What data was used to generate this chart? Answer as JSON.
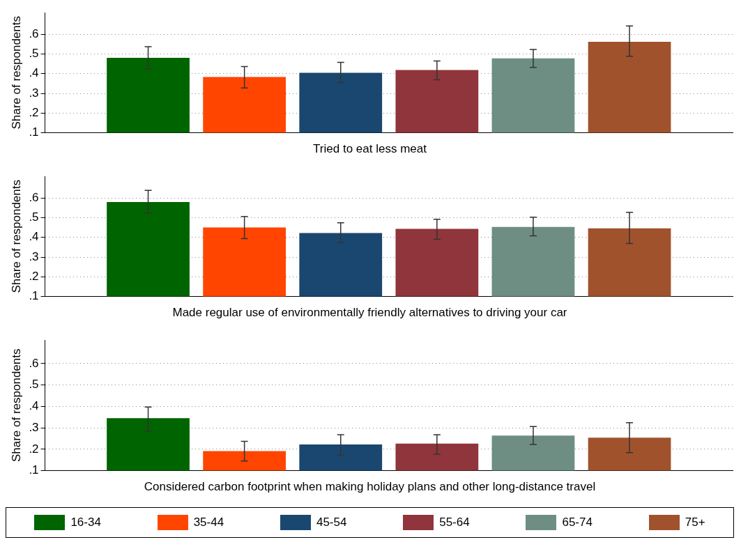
{
  "chart_data": [
    {
      "type": "bar",
      "title": "Tried to eat less meat",
      "ylabel": "Share of respondents",
      "categories": [
        null
      ],
      "ylim": [
        0.1,
        0.71
      ],
      "yticks": [
        {
          "value": 0.1,
          "label": ".1"
        },
        {
          "value": 0.2,
          "label": ".2"
        },
        {
          "value": 0.3,
          "label": ".3"
        },
        {
          "value": 0.4,
          "label": ".4"
        },
        {
          "value": 0.5,
          "label": ".5"
        },
        {
          "value": 0.6,
          "label": ".6"
        }
      ],
      "grid": "y",
      "legend": false,
      "series": [
        {
          "color": "#006400",
          "values": [
            0.48
          ],
          "errors": [
            [
              0.425,
              0.537
            ]
          ]
        },
        {
          "color": "#ff4500",
          "values": [
            0.383
          ],
          "errors": [
            [
              0.327,
              0.436
            ]
          ]
        },
        {
          "color": "#1a476f",
          "values": [
            0.404
          ],
          "errors": [
            [
              0.355,
              0.457
            ]
          ]
        },
        {
          "color": "#90353b",
          "values": [
            0.418
          ],
          "errors": [
            [
              0.369,
              0.464
            ]
          ]
        },
        {
          "color": "#6e8e84",
          "values": [
            0.478
          ],
          "errors": [
            [
              0.432,
              0.523
            ]
          ]
        },
        {
          "color": "#a0522d",
          "values": [
            0.562
          ],
          "errors": [
            [
              0.488,
              0.642
            ]
          ]
        }
      ]
    },
    {
      "type": "bar",
      "title": "Made regular use of environmentally friendly alternatives to driving your car",
      "ylabel": "Share of respondents",
      "categories": [
        null
      ],
      "ylim": [
        0.1,
        0.71
      ],
      "yticks": [
        {
          "value": 0.1,
          "label": ".1"
        },
        {
          "value": 0.2,
          "label": ".2"
        },
        {
          "value": 0.3,
          "label": ".3"
        },
        {
          "value": 0.4,
          "label": ".4"
        },
        {
          "value": 0.5,
          "label": ".5"
        },
        {
          "value": 0.6,
          "label": ".6"
        }
      ],
      "grid": "y",
      "legend": false,
      "series": [
        {
          "color": "#006400",
          "values": [
            0.579
          ],
          "errors": [
            [
              0.523,
              0.638
            ]
          ]
        },
        {
          "color": "#ff4500",
          "values": [
            0.45
          ],
          "errors": [
            [
              0.394,
              0.506
            ]
          ]
        },
        {
          "color": "#1a476f",
          "values": [
            0.422
          ],
          "errors": [
            [
              0.373,
              0.474
            ]
          ]
        },
        {
          "color": "#90353b",
          "values": [
            0.443
          ],
          "errors": [
            [
              0.39,
              0.492
            ]
          ]
        },
        {
          "color": "#6e8e84",
          "values": [
            0.453
          ],
          "errors": [
            [
              0.408,
              0.502
            ]
          ]
        },
        {
          "color": "#a0522d",
          "values": [
            0.446
          ],
          "errors": [
            [
              0.369,
              0.527
            ]
          ]
        }
      ]
    },
    {
      "type": "bar",
      "title": "Considered carbon footprint when making holiday plans and other long-distance travel",
      "ylabel": "Share of respondents",
      "categories": [
        null
      ],
      "ylim": [
        0.1,
        0.71
      ],
      "yticks": [
        {
          "value": 0.1,
          "label": ".1"
        },
        {
          "value": 0.2,
          "label": ".2"
        },
        {
          "value": 0.3,
          "label": ".3"
        },
        {
          "value": 0.4,
          "label": ".4"
        },
        {
          "value": 0.5,
          "label": ".5"
        },
        {
          "value": 0.6,
          "label": ".6"
        }
      ],
      "grid": "y",
      "legend": "bottom",
      "series": [
        {
          "name": "16-34",
          "color": "#006400",
          "values": [
            0.345
          ],
          "errors": [
            [
              0.285,
              0.397
            ]
          ]
        },
        {
          "name": "35-44",
          "color": "#ff4500",
          "values": [
            0.191
          ],
          "errors": [
            [
              0.145,
              0.237
            ]
          ]
        },
        {
          "name": "45-54",
          "color": "#1a476f",
          "values": [
            0.222
          ],
          "errors": [
            [
              0.173,
              0.268
            ]
          ]
        },
        {
          "name": "55-64",
          "color": "#90353b",
          "values": [
            0.226
          ],
          "errors": [
            [
              0.177,
              0.268
            ]
          ]
        },
        {
          "name": "65-74",
          "color": "#6e8e84",
          "values": [
            0.264
          ],
          "errors": [
            [
              0.222,
              0.306
            ]
          ]
        },
        {
          "name": "75+",
          "color": "#a0522d",
          "values": [
            0.254
          ],
          "errors": [
            [
              0.184,
              0.324
            ]
          ]
        }
      ]
    }
  ]
}
